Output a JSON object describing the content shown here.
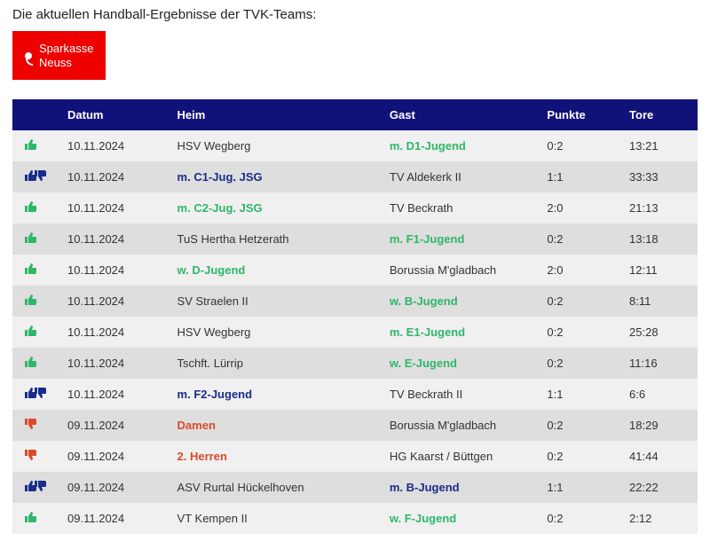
{
  "title": "Die aktuellen Handball-Ergebnisse der TVK-Teams:",
  "sponsor": {
    "line1": "Sparkasse",
    "line2": "Neuss",
    "bg": "#ee0000"
  },
  "colors": {
    "header_bg": "#10127a",
    "row_odd": "#f0f0f0",
    "row_even": "#dedede",
    "win": "#2fb66a",
    "loss": "#d94a2b",
    "draw": "#1a2c8a"
  },
  "columns": {
    "icon": "",
    "date": "Datum",
    "home": "Heim",
    "away": "Gast",
    "points": "Punkte",
    "goals": "Tore"
  },
  "rows": [
    {
      "result": "win",
      "date": "10.11.2024",
      "home": "HSV Wegberg",
      "away": "m. D1-Jugend",
      "tvk_side": "away",
      "points": "0:2",
      "goals": "13:21"
    },
    {
      "result": "draw",
      "date": "10.11.2024",
      "home": "m. C1-Jug. JSG",
      "away": "TV Aldekerk II",
      "tvk_side": "home",
      "points": "1:1",
      "goals": "33:33"
    },
    {
      "result": "win",
      "date": "10.11.2024",
      "home": "m. C2-Jug. JSG",
      "away": "TV Beckrath",
      "tvk_side": "home",
      "points": "2:0",
      "goals": "21:13"
    },
    {
      "result": "win",
      "date": "10.11.2024",
      "home": "TuS Hertha Hetzerath",
      "away": "m. F1-Jugend",
      "tvk_side": "away",
      "points": "0:2",
      "goals": "13:18"
    },
    {
      "result": "win",
      "date": "10.11.2024",
      "home": "w. D-Jugend",
      "away": "Borussia M'gladbach",
      "tvk_side": "home",
      "points": "2:0",
      "goals": "12:11"
    },
    {
      "result": "win",
      "date": "10.11.2024",
      "home": "SV Straelen II",
      "away": "w. B-Jugend",
      "tvk_side": "away",
      "points": "0:2",
      "goals": "8:11"
    },
    {
      "result": "win",
      "date": "10.11.2024",
      "home": "HSV Wegberg",
      "away": "m. E1-Jugend",
      "tvk_side": "away",
      "points": "0:2",
      "goals": "25:28"
    },
    {
      "result": "win",
      "date": "10.11.2024",
      "home": "Tschft. Lürrip",
      "away": "w. E-Jugend",
      "tvk_side": "away",
      "points": "0:2",
      "goals": "11:16"
    },
    {
      "result": "draw",
      "date": "10.11.2024",
      "home": "m. F2-Jugend",
      "away": "TV Beckrath II",
      "tvk_side": "home",
      "points": "1:1",
      "goals": "6:6"
    },
    {
      "result": "loss",
      "date": "09.11.2024",
      "home": "Damen",
      "away": "Borussia M'gladbach",
      "tvk_side": "home",
      "points": "0:2",
      "goals": "18:29"
    },
    {
      "result": "loss",
      "date": "09.11.2024",
      "home": "2. Herren",
      "away": "HG Kaarst / Büttgen",
      "tvk_side": "home",
      "points": "0:2",
      "goals": "41:44"
    },
    {
      "result": "draw",
      "date": "09.11.2024",
      "home": "ASV Rurtal Hückelhoven",
      "away": "m. B-Jugend",
      "tvk_side": "away",
      "points": "1:1",
      "goals": "22:22"
    },
    {
      "result": "win",
      "date": "09.11.2024",
      "home": "VT Kempen II",
      "away": "w. F-Jugend",
      "tvk_side": "away",
      "points": "0:2",
      "goals": "2:12"
    }
  ]
}
